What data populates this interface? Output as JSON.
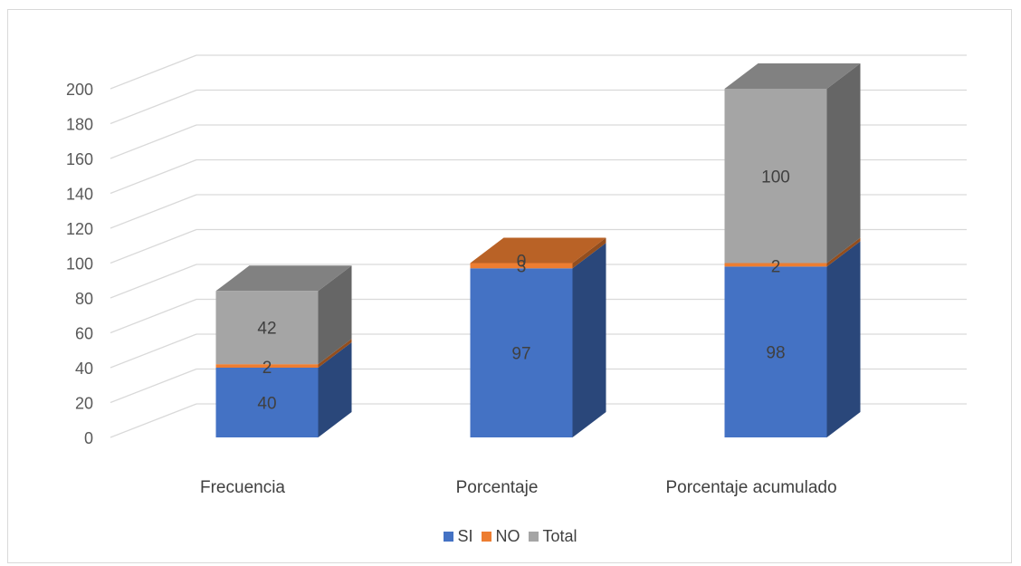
{
  "chart_data": {
    "type": "bar",
    "stacked": true,
    "three_d": true,
    "categories": [
      "Frecuencia",
      "Porcentaje",
      "Porcentaje acumulado"
    ],
    "series": [
      {
        "name": "SI",
        "values": [
          40,
          97,
          98
        ],
        "labels": [
          "40",
          "97",
          "98"
        ],
        "color": "#4472c4"
      },
      {
        "name": "NO",
        "values": [
          2,
          3,
          2
        ],
        "labels": [
          "2",
          "3",
          "2"
        ],
        "color": "#ed7d31"
      },
      {
        "name": "Total",
        "values": [
          42,
          0,
          100
        ],
        "labels": [
          "42",
          "0",
          "100"
        ],
        "color": "#a5a5a5"
      }
    ],
    "ylim": [
      0,
      200
    ],
    "yticks": [
      0,
      20,
      40,
      60,
      80,
      100,
      120,
      140,
      160,
      180,
      200
    ],
    "grid": true,
    "legend_position": "bottom"
  }
}
